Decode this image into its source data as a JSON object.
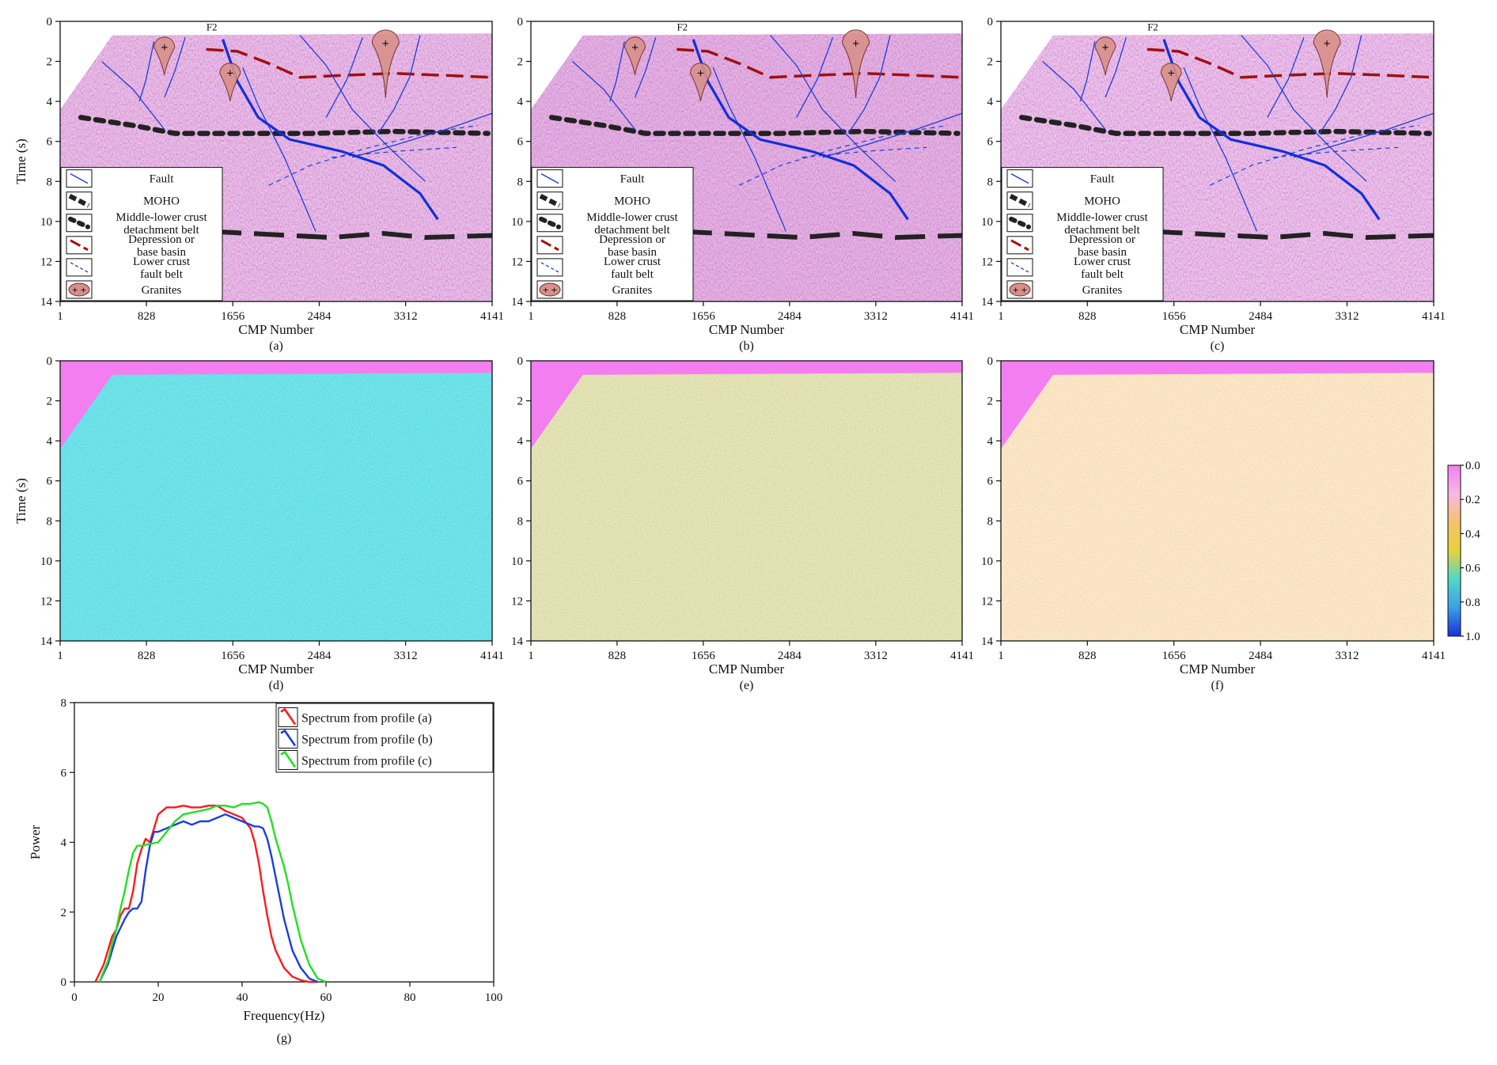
{
  "seismic_panels": [
    {
      "id": "a",
      "label": "(a)",
      "kind": "section",
      "background": "#e8c4e6"
    },
    {
      "id": "b",
      "label": "(b)",
      "kind": "section",
      "background": "#e3b9e2"
    },
    {
      "id": "c",
      "label": "(c)",
      "kind": "section",
      "background": "#ebc9ea"
    },
    {
      "id": "d",
      "label": "(d)",
      "kind": "similarity",
      "palette": "cool"
    },
    {
      "id": "e",
      "label": "(e)",
      "kind": "similarity",
      "palette": "mid"
    },
    {
      "id": "f",
      "label": "(f)",
      "kind": "similarity",
      "palette": "warm"
    }
  ],
  "seismic_axes": {
    "xlabel": "CMP Number",
    "ylabel": "Time (s)",
    "xticks": [
      "1",
      "828",
      "1656",
      "2484",
      "3312",
      "4141"
    ],
    "yticks": [
      "0",
      "2",
      "4",
      "6",
      "8",
      "10",
      "12",
      "14"
    ],
    "xlim": [
      1,
      4141
    ],
    "ylim": [
      0,
      14
    ]
  },
  "annotations": {
    "fault_name": "F2"
  },
  "legend": {
    "items": [
      {
        "label": "Fault",
        "symbol": "fault",
        "color": "#1f3fd6"
      },
      {
        "label": "MOHO",
        "symbol": "moho",
        "color": "#222222"
      },
      {
        "label": "Middle-lower crust\ndetachment belt",
        "symbol": "detachment",
        "color": "#222222"
      },
      {
        "label": "Depression or\nbase basin",
        "symbol": "basin",
        "color": "#a01010"
      },
      {
        "label": "Lower crust\nfault belt",
        "symbol": "lowerfault",
        "color": "#1f3fd6"
      },
      {
        "label": "Granites",
        "symbol": "granite",
        "color": "#d9908a"
      }
    ]
  },
  "colorbar": {
    "ticks": [
      "0.0",
      "0.2",
      "0.4",
      "0.6",
      "0.8",
      "1.0"
    ],
    "colors": [
      "#f27ef0",
      "#f7b8e4",
      "#f5c36a",
      "#e8d23a",
      "#4fd8c8",
      "#3aa0e8",
      "#1a2fd8"
    ]
  },
  "chart_data": {
    "type": "line",
    "label": "(g)",
    "xlabel": "Frequency(Hz)",
    "ylabel": "Power",
    "xlim": [
      0,
      100
    ],
    "ylim": [
      0,
      8
    ],
    "xticks": [
      0,
      20,
      40,
      60,
      80,
      100
    ],
    "yticks": [
      0,
      2,
      4,
      6,
      8
    ],
    "legend_position": "top-right",
    "series": [
      {
        "name": "Spectrum from profile (a)",
        "color": "#ff1a1a",
        "x": [
          5,
          7,
          9,
          10,
          11,
          12,
          13,
          14,
          15,
          16,
          17,
          18,
          19,
          20,
          21,
          22,
          24,
          26,
          28,
          30,
          32,
          34,
          36,
          38,
          40,
          42,
          43,
          44,
          45,
          46,
          47,
          48,
          50,
          52,
          54,
          56,
          58
        ],
        "y": [
          0,
          0.5,
          1.3,
          1.5,
          1.9,
          2.1,
          2.1,
          2.6,
          3.4,
          3.8,
          4.1,
          4.0,
          4.4,
          4.8,
          4.9,
          5.0,
          5.0,
          5.05,
          5.0,
          5.0,
          5.05,
          5.05,
          4.9,
          4.8,
          4.7,
          4.4,
          4.0,
          3.4,
          2.6,
          1.9,
          1.3,
          0.9,
          0.4,
          0.15,
          0.05,
          0,
          0
        ]
      },
      {
        "name": "Spectrum from profile (b)",
        "color": "#1a3fe0",
        "x": [
          6,
          8,
          10,
          12,
          13,
          14,
          15,
          16,
          17,
          18,
          19,
          20,
          22,
          24,
          26,
          28,
          30,
          32,
          34,
          36,
          38,
          40,
          42,
          43,
          44,
          45,
          46,
          47,
          48,
          49,
          50,
          52,
          54,
          56,
          58
        ],
        "y": [
          0,
          0.5,
          1.3,
          1.8,
          2.0,
          2.1,
          2.1,
          2.3,
          3.2,
          3.9,
          4.3,
          4.3,
          4.4,
          4.5,
          4.6,
          4.5,
          4.6,
          4.6,
          4.7,
          4.8,
          4.7,
          4.6,
          4.5,
          4.45,
          4.45,
          4.4,
          4.1,
          3.6,
          3.0,
          2.4,
          1.8,
          0.9,
          0.4,
          0.1,
          0
        ]
      },
      {
        "name": "Spectrum from profile (c)",
        "color": "#22e022",
        "x": [
          6,
          8,
          9,
          10,
          11,
          12,
          13,
          14,
          15,
          16,
          18,
          20,
          22,
          24,
          26,
          28,
          30,
          32,
          34,
          36,
          38,
          40,
          42,
          44,
          45,
          46,
          47,
          48,
          49,
          50,
          51,
          52,
          54,
          56,
          58,
          60
        ],
        "y": [
          0,
          0.6,
          1.1,
          1.5,
          2.1,
          2.6,
          3.2,
          3.7,
          3.9,
          3.9,
          3.95,
          4.0,
          4.3,
          4.6,
          4.8,
          4.85,
          4.9,
          4.95,
          5.05,
          5.05,
          5.0,
          5.1,
          5.1,
          5.15,
          5.1,
          5.0,
          4.6,
          4.1,
          3.7,
          3.3,
          2.8,
          2.2,
          1.2,
          0.5,
          0.1,
          0
        ]
      }
    ]
  }
}
